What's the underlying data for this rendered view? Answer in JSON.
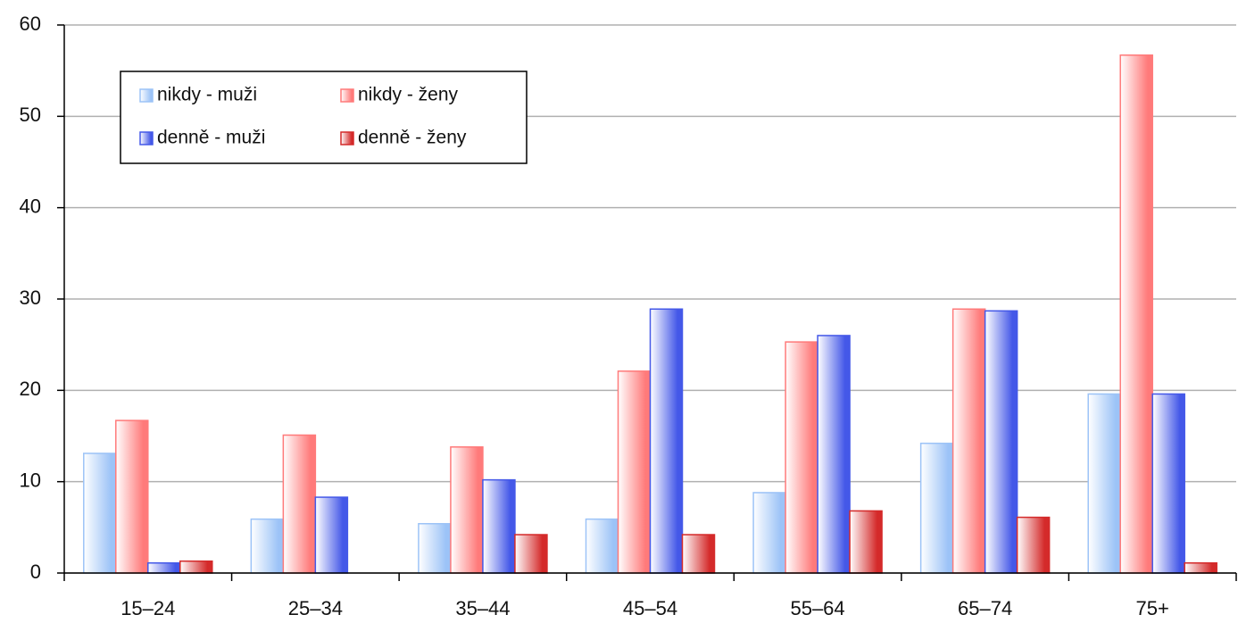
{
  "chart_data": {
    "type": "bar",
    "categories": [
      "15–24",
      "25–34",
      "35–44",
      "45–54",
      "55–64",
      "65–74",
      "75+"
    ],
    "series": [
      {
        "name": "nikdy - muži",
        "color": "#9cc3f7",
        "values": [
          13.1,
          5.9,
          5.4,
          5.9,
          8.8,
          14.2,
          19.6
        ]
      },
      {
        "name": "nikdy - ženy",
        "color": "#ff7a7a",
        "values": [
          16.7,
          15.1,
          13.8,
          22.1,
          25.3,
          28.9,
          56.7
        ]
      },
      {
        "name": "denně - muži",
        "color": "#4458e8",
        "values": [
          1.1,
          8.3,
          10.2,
          28.9,
          26.0,
          28.7,
          19.6
        ]
      },
      {
        "name": "denně - ženy",
        "color": "#d42a2a",
        "values": [
          1.3,
          0,
          4.2,
          4.2,
          6.8,
          6.1,
          1.1
        ]
      }
    ],
    "ylim": [
      0,
      60
    ],
    "yticks": [
      0,
      10,
      20,
      30,
      40,
      50,
      60
    ],
    "grid": true,
    "legend": "upper left"
  }
}
